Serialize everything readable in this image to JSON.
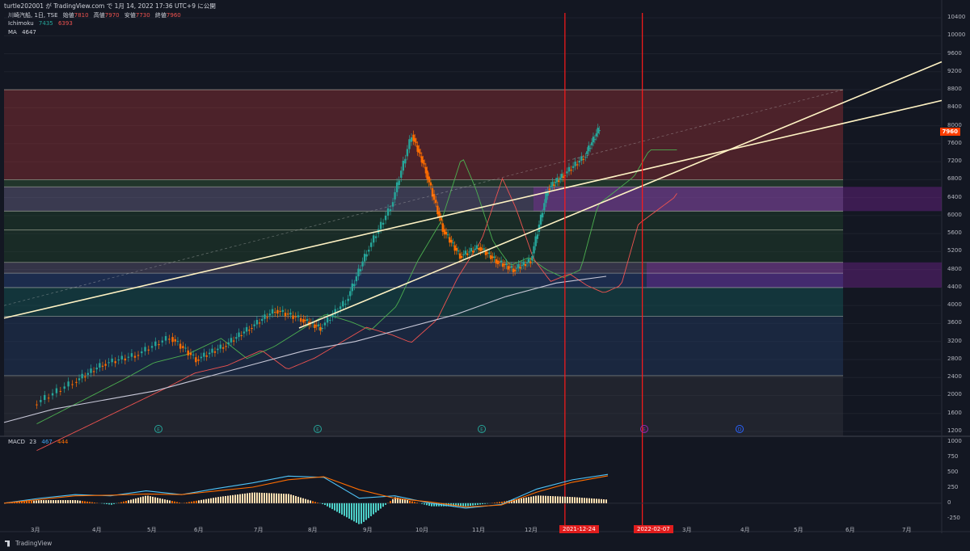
{
  "header": {
    "title": "turtle202001 が TradingView.com で 1月 14, 2022 17:36 UTC+9 に公開"
  },
  "main_legend": {
    "symbol": "川崎汽船, 1日, TSE",
    "open_label": "始値",
    "open": "7810",
    "high_label": "高値",
    "high": "7970",
    "low_label": "安値",
    "low": "7730",
    "close_label": "終値",
    "close": "7960",
    "ichimoku_label": "Ichimoku",
    "ichimoku_a": "7435",
    "ichimoku_b": "6393",
    "ma_label": "MA",
    "ma_value": "4647"
  },
  "macd_legend": {
    "label": "MACD",
    "fast": "23",
    "v1": "467",
    "v2": "444"
  },
  "price_axis": [
    "10400",
    "10000",
    "9600",
    "9200",
    "8800",
    "8400",
    "8000",
    "7600",
    "7200",
    "6800",
    "6400",
    "6000",
    "5600",
    "5200",
    "4800",
    "4400",
    "4000",
    "3600",
    "3200",
    "2800",
    "2400",
    "2000",
    "1600",
    "1200"
  ],
  "macd_axis": [
    "1000",
    "750",
    "500",
    "250",
    "0",
    "-250"
  ],
  "time_axis": [
    "3月",
    "4月",
    "5月",
    "6月",
    "7月",
    "8月",
    "9月",
    "10月",
    "11月",
    "12月",
    "2",
    "3月",
    "4月",
    "5月",
    "6月",
    "7月"
  ],
  "current_price_tag": "7960",
  "date_markers": [
    "2021-12-24",
    "2022-02-07"
  ],
  "event_markers": [
    "E",
    "E",
    "E",
    "E",
    "D"
  ],
  "footer": {
    "brand": "TradingView"
  },
  "colors": {
    "background": "#131722",
    "up": "#26a69a",
    "down": "#ff6d00",
    "trendline": "#fff3c4",
    "vertical_marker": "#ff1a1a",
    "macd": "#4fc3f7",
    "signal": "#ff6d00"
  },
  "chart_data": {
    "type": "line",
    "title": "川崎汽船, 1日, TSE",
    "price": {
      "x": [
        "2021-02-20",
        "2021-03-15",
        "2021-04-01",
        "2021-04-20",
        "2021-05-10",
        "2021-05-25",
        "2021-06-10",
        "2021-06-25",
        "2021-07-10",
        "2021-07-25",
        "2021-08-05",
        "2021-08-20",
        "2021-09-01",
        "2021-09-15",
        "2021-09-27",
        "2021-10-05",
        "2021-10-15",
        "2021-10-25",
        "2021-11-05",
        "2021-11-15",
        "2021-11-25",
        "2021-12-05",
        "2021-12-15",
        "2021-12-24",
        "2022-01-05",
        "2022-01-14"
      ],
      "close": [
        1800,
        2300,
        2700,
        2900,
        3300,
        2800,
        3100,
        3500,
        3900,
        3700,
        3500,
        4100,
        5200,
        6200,
        7800,
        7000,
        5700,
        5100,
        5300,
        5000,
        4800,
        5000,
        6600,
        6900,
        7300,
        7960
      ]
    },
    "ma": {
      "values": [
        1400,
        1700,
        1900,
        2100,
        2400,
        2700,
        3000,
        3200,
        3500,
        3800,
        4200,
        4500,
        4650
      ]
    },
    "macd": {
      "values": [
        0,
        80,
        140,
        120,
        200,
        140,
        240,
        330,
        440,
        420,
        80,
        120,
        0,
        -80,
        -20,
        230,
        380,
        467
      ]
    },
    "signal": {
      "values": [
        0,
        60,
        120,
        130,
        150,
        140,
        200,
        260,
        380,
        430,
        220,
        80,
        20,
        -60,
        -30,
        180,
        340,
        444
      ]
    },
    "horizontal_levels": [
      8800,
      6800,
      6640,
      6100,
      5680,
      4960,
      4720,
      4400,
      3760,
      2440
    ],
    "ylim": [
      1200,
      10400
    ],
    "grid": true,
    "macd_ylim": [
      -250,
      1000
    ]
  }
}
